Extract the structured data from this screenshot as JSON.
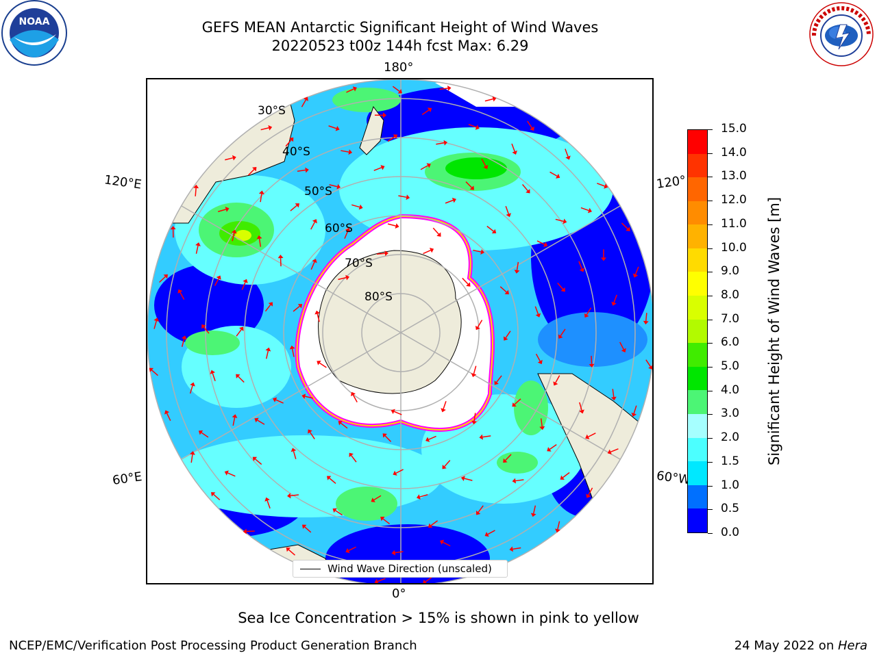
{
  "header": {
    "title_line1": "GEFS MEAN Antarctic Significant Height of Wind Waves",
    "title_line2": "20220523 t00z 144h fcst   Max: 6.29"
  },
  "map": {
    "longitude_labels": {
      "top": "180°",
      "bottom": "0°",
      "left_upper": "120°E",
      "left_lower": "60°E",
      "right_upper": "120°",
      "right_lower": "60°W"
    },
    "latitude_labels": [
      "30°S",
      "40°S",
      "50°S",
      "60°S",
      "70°S",
      "80°S"
    ],
    "legend": {
      "entry": "Wind Wave Direction (unscaled)",
      "line_color": "#000000"
    },
    "arrow_color": "#ff0000",
    "land_color": "#eeecdb",
    "ice_edge_colors": [
      "#ff00ff",
      "#ffd700"
    ]
  },
  "colorbar": {
    "label": "Significant Height of Wind Waves [m]",
    "ticks": [
      "0.0",
      "0.5",
      "1.0",
      "1.5",
      "2.0",
      "3.0",
      "4.0",
      "5.0",
      "6.0",
      "7.0",
      "8.0",
      "9.0",
      "10.0",
      "11.0",
      "12.0",
      "13.0",
      "14.0",
      "15.0"
    ],
    "colors": [
      "#0000ff",
      "#0070ff",
      "#00e8ff",
      "#4cffff",
      "#a6ffff",
      "#4cf575",
      "#00e600",
      "#40ec00",
      "#b2fa00",
      "#d9ff00",
      "#ffff00",
      "#ffdb00",
      "#ffb200",
      "#ff8c00",
      "#ff6600",
      "#ff3300",
      "#ff0000"
    ]
  },
  "notes": {
    "sea_ice": "Sea Ice Concentration > 15% is shown in pink to yellow"
  },
  "footer": {
    "left": "NCEP/EMC/Verification Post Processing Product Generation Branch",
    "right_date": "24 May 2022 on ",
    "right_machine": "Hera"
  },
  "logos": {
    "noaa_text": "NOAA",
    "nws_text": "NATIONAL WEATHER SERVICE"
  }
}
